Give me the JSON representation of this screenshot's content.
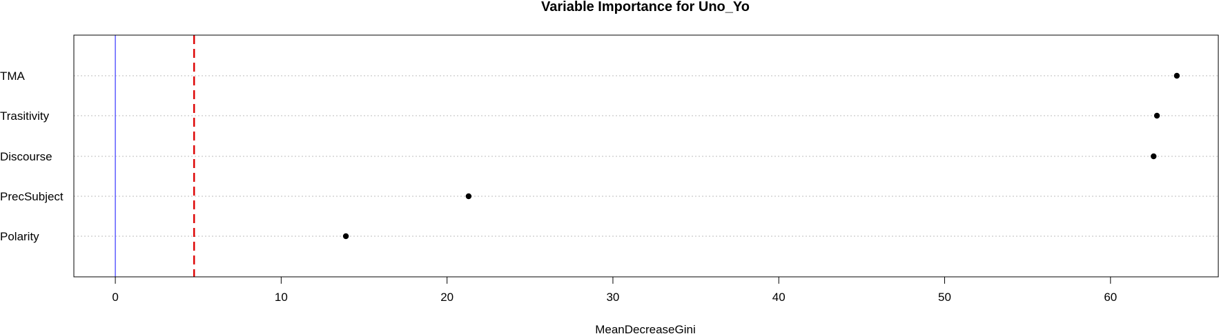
{
  "chart_data": {
    "type": "scatter",
    "title": "Variable Importance for  Uno_Yo",
    "xlabel": "MeanDecreaseGini",
    "ylabel": "",
    "xlim": [
      -2.5,
      66.5
    ],
    "xticks": [
      0,
      10,
      20,
      30,
      40,
      50,
      60
    ],
    "categories": [
      "TMA",
      "Trasitivity",
      "Discourse",
      "PrecSubject",
      "Polarity"
    ],
    "values": [
      64.0,
      62.8,
      62.6,
      21.3,
      13.9
    ],
    "reference_lines": [
      {
        "x": 0,
        "style": "solid",
        "color": "#3333ff"
      },
      {
        "x": 4.75,
        "style": "dashed",
        "color": "#dd0000"
      }
    ],
    "grid": "horizontal dotted lines at each category",
    "colors": {
      "points": "#000000",
      "grid": "#bbbbbb",
      "frame": "#000000"
    }
  }
}
